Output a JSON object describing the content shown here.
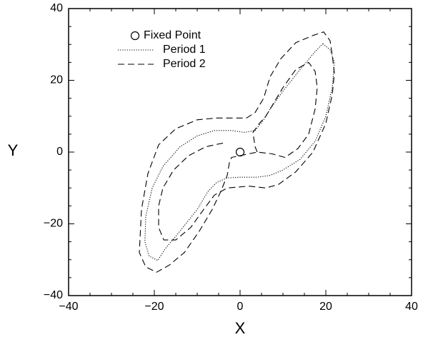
{
  "chart_data": {
    "type": "line",
    "title": "",
    "xlabel": "X",
    "ylabel": "Y",
    "xlim": [
      -40,
      40
    ],
    "ylim": [
      -40,
      40
    ],
    "xticks": [
      -40,
      -20,
      0,
      20,
      40
    ],
    "yticks": [
      -40,
      -20,
      0,
      20,
      40
    ],
    "grid": false,
    "legend_position": "top-left",
    "series": [
      {
        "name": "Fixed Point",
        "style": "circle-marker",
        "points": [
          [
            0,
            0
          ]
        ]
      },
      {
        "name": "Period 1",
        "style": "dotted",
        "points": [
          [
            19.3,
            30.2
          ],
          [
            21,
            28.5
          ],
          [
            22,
            25
          ],
          [
            21.5,
            18
          ],
          [
            20,
            10
          ],
          [
            17.5,
            3
          ],
          [
            14,
            -2
          ],
          [
            10,
            -5
          ],
          [
            7,
            -6.5
          ],
          [
            4,
            -7
          ],
          [
            0,
            -7
          ],
          [
            -3,
            -7.2
          ],
          [
            -5.5,
            -8.5
          ],
          [
            -7.5,
            -11
          ],
          [
            -10,
            -16
          ],
          [
            -14,
            -22
          ],
          [
            -17.5,
            -27
          ],
          [
            -19.2,
            -30.2
          ],
          [
            -21.2,
            -29
          ],
          [
            -22.2,
            -25
          ],
          [
            -22,
            -18
          ],
          [
            -20.5,
            -10
          ],
          [
            -18,
            -4
          ],
          [
            -14,
            1.5
          ],
          [
            -10,
            4.5
          ],
          [
            -6,
            6
          ],
          [
            -2,
            6
          ],
          [
            1,
            5.5
          ],
          [
            3.5,
            6
          ],
          [
            5.5,
            9
          ],
          [
            7,
            12
          ],
          [
            10,
            17
          ],
          [
            14,
            23
          ],
          [
            17.5,
            28
          ],
          [
            19.3,
            30.2
          ]
        ]
      },
      {
        "name": "Period 2",
        "style": "dashed",
        "points": [
          [
            -4,
            2.5
          ],
          [
            -8,
            1.5
          ],
          [
            -12,
            -1
          ],
          [
            -15.5,
            -5
          ],
          [
            -18,
            -10
          ],
          [
            -19,
            -15
          ],
          [
            -19,
            -21
          ],
          [
            -17.8,
            -24.5
          ],
          [
            -15,
            -24.5
          ],
          [
            -11.5,
            -21
          ],
          [
            -8.5,
            -16
          ],
          [
            -6,
            -12
          ],
          [
            -3,
            -10
          ],
          [
            2,
            -9.5
          ],
          [
            6,
            -10
          ],
          [
            9,
            -9
          ],
          [
            13,
            -5.5
          ],
          [
            17,
            0
          ],
          [
            20,
            8
          ],
          [
            21.5,
            16
          ],
          [
            22,
            22
          ],
          [
            21.5,
            27
          ],
          [
            21,
            31
          ],
          [
            19.5,
            33.5
          ],
          [
            17,
            32.5
          ],
          [
            13,
            30.5
          ],
          [
            9.5,
            26
          ],
          [
            7,
            21
          ],
          [
            5.5,
            15
          ],
          [
            3.5,
            11
          ],
          [
            1.5,
            9.5
          ],
          [
            -2,
            9.5
          ],
          [
            -5.5,
            9.5
          ],
          [
            -10,
            9
          ],
          [
            -15,
            6.5
          ],
          [
            -19,
            2
          ],
          [
            -21.5,
            -6
          ],
          [
            -23,
            -16
          ],
          [
            -23.5,
            -28
          ],
          [
            -22,
            -32
          ],
          [
            -19.5,
            -33.5
          ],
          [
            -16.5,
            -31.5
          ],
          [
            -13,
            -28
          ],
          [
            -9.5,
            -22
          ],
          [
            -6.5,
            -16
          ],
          [
            -4.5,
            -11
          ],
          [
            -3,
            -6.5
          ],
          [
            -2.5,
            -3
          ],
          [
            -2,
            -1.5
          ],
          [
            4,
            0
          ],
          [
            7.5,
            -0.5
          ],
          [
            10.5,
            -1.5
          ],
          [
            13.5,
            1
          ],
          [
            16,
            5
          ],
          [
            17.5,
            12
          ],
          [
            18,
            18
          ],
          [
            17.5,
            22.5
          ],
          [
            16,
            25
          ],
          [
            13,
            23
          ],
          [
            10,
            18
          ],
          [
            8,
            14
          ],
          [
            6,
            10
          ],
          [
            4.5,
            8
          ],
          [
            3,
            5.5
          ],
          [
            3.5,
            1.5
          ],
          [
            4,
            0
          ]
        ]
      }
    ]
  }
}
